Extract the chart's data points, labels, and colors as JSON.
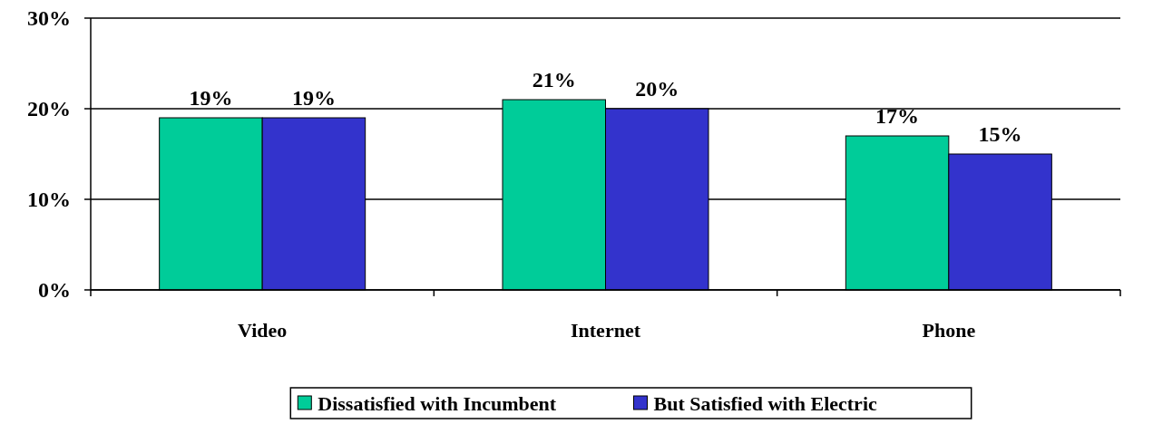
{
  "chart_data": {
    "type": "bar",
    "categories": [
      "Video",
      "Internet",
      "Phone"
    ],
    "series": [
      {
        "name": "Dissatisfied with Incumbent",
        "color": "#00cc99",
        "values": [
          19,
          21,
          17
        ],
        "value_labels": [
          "19%",
          "21%",
          "17%"
        ]
      },
      {
        "name": "But Satisfied with Electric",
        "color": "#3333cc",
        "values": [
          19,
          20,
          15
        ],
        "value_labels": [
          "19%",
          "20%",
          "15%"
        ]
      }
    ],
    "ylim": [
      0,
      30
    ],
    "yticks": [
      {
        "value": 0,
        "label": "0%"
      },
      {
        "value": 10,
        "label": "10%"
      },
      {
        "value": 20,
        "label": "20%"
      },
      {
        "value": 30,
        "label": "30%"
      }
    ],
    "grid": "y",
    "legend": "bottom"
  }
}
